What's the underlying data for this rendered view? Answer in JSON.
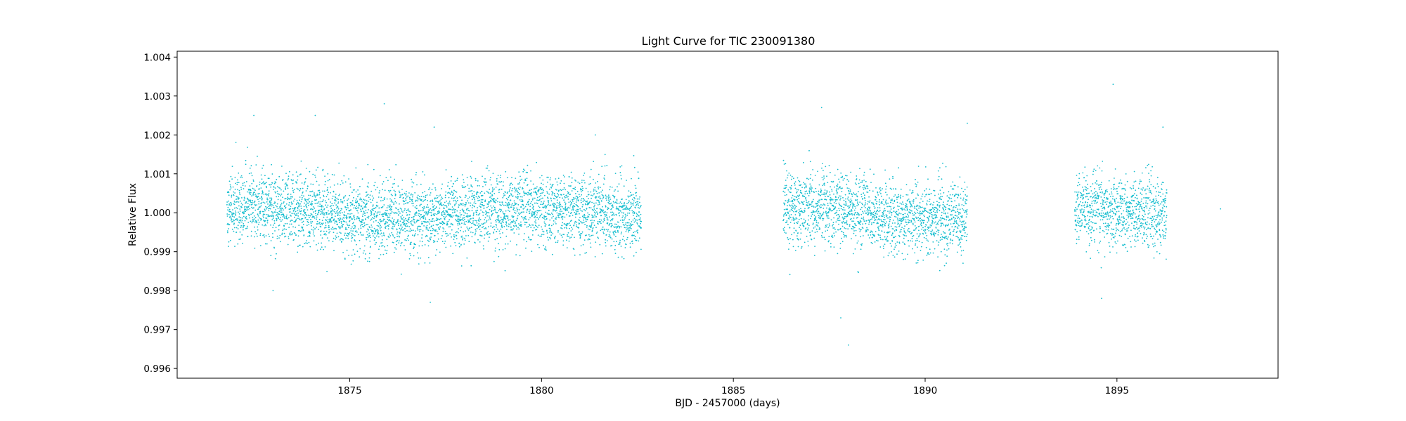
{
  "chart_data": {
    "type": "scatter",
    "title": "Light Curve for TIC 230091380",
    "xlabel": "BJD - 2457000 (days)",
    "ylabel": "Relative Flux",
    "xlim": [
      1870.5,
      1899.2
    ],
    "ylim": [
      0.99575,
      1.00415
    ],
    "x_ticks": [
      1875,
      1880,
      1885,
      1890,
      1895
    ],
    "y_ticks": [
      0.996,
      0.997,
      0.998,
      0.999,
      1.0,
      1.001,
      1.002,
      1.003,
      1.004
    ],
    "x_tick_labels": [
      "1875",
      "1880",
      "1885",
      "1890",
      "1895"
    ],
    "y_tick_labels": [
      "0.996",
      "0.997",
      "0.998",
      "0.999",
      "1.000",
      "1.001",
      "1.002",
      "1.003",
      "1.004"
    ],
    "grid": false,
    "legend": "none",
    "marker_color": "#17becf",
    "segments": [
      {
        "x_start": 1871.8,
        "x_end": 1882.6,
        "approx_center": 1.0,
        "approx_scatter": 0.00045
      },
      {
        "x_start": 1886.3,
        "x_end": 1891.1,
        "approx_center": 1.0,
        "approx_scatter": 0.00045
      },
      {
        "x_start": 1893.9,
        "x_end": 1896.3,
        "approx_center": 1.0,
        "approx_scatter": 0.00045
      }
    ],
    "outliers": [
      {
        "x": 1872.5,
        "y": 1.0025
      },
      {
        "x": 1873.0,
        "y": 0.998
      },
      {
        "x": 1874.1,
        "y": 1.0025
      },
      {
        "x": 1875.9,
        "y": 1.0028
      },
      {
        "x": 1877.1,
        "y": 0.9977
      },
      {
        "x": 1877.2,
        "y": 1.0022
      },
      {
        "x": 1881.4,
        "y": 1.002
      },
      {
        "x": 1887.3,
        "y": 1.0027
      },
      {
        "x": 1887.8,
        "y": 0.9973
      },
      {
        "x": 1888.0,
        "y": 0.9966
      },
      {
        "x": 1891.1,
        "y": 1.0023
      },
      {
        "x": 1894.6,
        "y": 0.9978
      },
      {
        "x": 1894.9,
        "y": 1.0033
      },
      {
        "x": 1896.2,
        "y": 1.0022
      },
      {
        "x": 1897.7,
        "y": 1.0001
      }
    ]
  }
}
